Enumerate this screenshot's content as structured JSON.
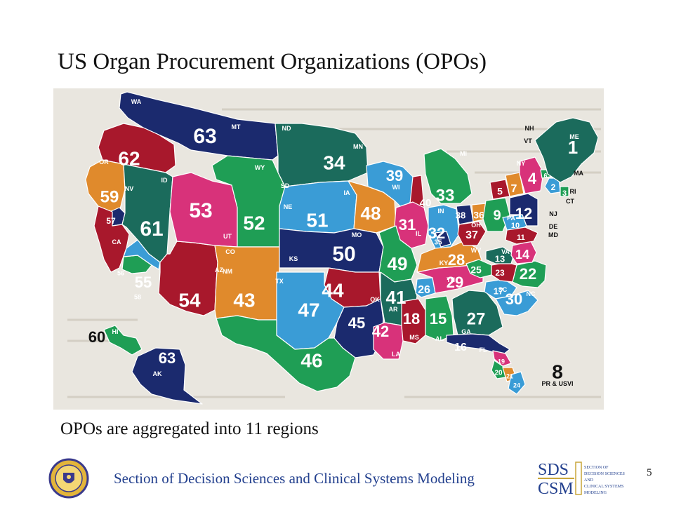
{
  "slide": {
    "title": "US Organ Procurement Organizations (OPOs)",
    "subtitle": "OPOs are aggregated into 11 regions",
    "footer": "Section of Decision Sciences and Clinical Systems Modeling",
    "page_number": "5"
  },
  "map": {
    "regions": [
      {
        "id": "1",
        "label": "1",
        "color": "#1b6b5c"
      },
      {
        "id": "2",
        "label": "2",
        "color": "#3a9cd6"
      },
      {
        "id": "3",
        "label": "3",
        "color": "#1f9e55"
      },
      {
        "id": "4",
        "label": "4",
        "color": "#d8327a"
      },
      {
        "id": "5",
        "label": "5",
        "color": "#a8182c"
      },
      {
        "id": "6",
        "label": "6",
        "color": "#1f9e55"
      },
      {
        "id": "7",
        "label": "7",
        "color": "#e08a2c"
      },
      {
        "id": "8",
        "label": "8",
        "color": "#1b2a6e"
      },
      {
        "id": "9",
        "label": "9",
        "color": "#1f9e55"
      },
      {
        "id": "10",
        "label": "10",
        "color": "#3a9cd6"
      },
      {
        "id": "11",
        "label": "11",
        "color": "#a8182c"
      },
      {
        "id": "12",
        "label": "12",
        "color": "#1b2a6e"
      },
      {
        "id": "13",
        "label": "13",
        "color": "#1b6b5c"
      },
      {
        "id": "14",
        "label": "14",
        "color": "#d8327a"
      },
      {
        "id": "15",
        "label": "15",
        "color": "#1f9e55"
      },
      {
        "id": "16",
        "label": "16",
        "color": "#1b2a6e"
      },
      {
        "id": "17",
        "label": "17",
        "color": "#3a9cd6"
      },
      {
        "id": "18",
        "label": "18",
        "color": "#a8182c"
      },
      {
        "id": "19",
        "label": "19",
        "color": "#d8327a"
      },
      {
        "id": "20",
        "label": "20",
        "color": "#1f9e55"
      },
      {
        "id": "21",
        "label": "21",
        "color": "#e08a2c"
      },
      {
        "id": "22",
        "label": "22",
        "color": "#1f9e55"
      },
      {
        "id": "23",
        "label": "23",
        "color": "#a8182c"
      },
      {
        "id": "24",
        "label": "24",
        "color": "#3a9cd6"
      },
      {
        "id": "25",
        "label": "25",
        "color": "#1f9e55"
      },
      {
        "id": "26",
        "label": "26",
        "color": "#3a9cd6"
      },
      {
        "id": "27",
        "label": "27",
        "color": "#1b6b5c"
      },
      {
        "id": "28",
        "label": "28",
        "color": "#e08a2c"
      },
      {
        "id": "29",
        "label": "29",
        "color": "#d8327a"
      },
      {
        "id": "30",
        "label": "30",
        "color": "#3a9cd6"
      },
      {
        "id": "31",
        "label": "31",
        "color": "#d8327a"
      },
      {
        "id": "32",
        "label": "32",
        "color": "#3a9cd6"
      },
      {
        "id": "33",
        "label": "33",
        "color": "#1f9e55"
      },
      {
        "id": "34",
        "label": "34",
        "color": "#1b6b5c"
      },
      {
        "id": "35",
        "label": "35",
        "color": "#1b2a6e"
      },
      {
        "id": "36",
        "label": "36",
        "color": "#e08a2c"
      },
      {
        "id": "37",
        "label": "37",
        "color": "#a8182c"
      },
      {
        "id": "38",
        "label": "38",
        "color": "#1b2a6e"
      },
      {
        "id": "39",
        "label": "39",
        "color": "#3a9cd6"
      },
      {
        "id": "40",
        "label": "40",
        "color": "#a8182c"
      },
      {
        "id": "41",
        "label": "41",
        "color": "#1b6b5c"
      },
      {
        "id": "42",
        "label": "42",
        "color": "#d8327a"
      },
      {
        "id": "43",
        "label": "43",
        "color": "#e08a2c"
      },
      {
        "id": "44",
        "label": "44",
        "color": "#a8182c"
      },
      {
        "id": "45",
        "label": "45",
        "color": "#1b2a6e"
      },
      {
        "id": "46",
        "label": "46",
        "color": "#1f9e55"
      },
      {
        "id": "47",
        "label": "47",
        "color": "#3a9cd6"
      },
      {
        "id": "48",
        "label": "48",
        "color": "#e08a2c"
      },
      {
        "id": "49",
        "label": "49",
        "color": "#1f9e55"
      },
      {
        "id": "50",
        "label": "50",
        "color": "#1b2a6e"
      },
      {
        "id": "51",
        "label": "51",
        "color": "#3a9cd6"
      },
      {
        "id": "52",
        "label": "52",
        "color": "#1f9e55"
      },
      {
        "id": "53",
        "label": "53",
        "color": "#d8327a"
      },
      {
        "id": "54",
        "label": "54",
        "color": "#a8182c"
      },
      {
        "id": "55",
        "label": "55",
        "color": "#3a9cd6"
      },
      {
        "id": "56",
        "label": "56",
        "color": "#a8182c"
      },
      {
        "id": "57",
        "label": "57",
        "color": "#1b2a6e"
      },
      {
        "id": "58",
        "label": "58",
        "color": "#1f9e55"
      },
      {
        "id": "59",
        "label": "59",
        "color": "#e08a2c"
      },
      {
        "id": "60",
        "label": "60",
        "color": "#1f9e55"
      },
      {
        "id": "61",
        "label": "61",
        "color": "#1b6b5c"
      },
      {
        "id": "62",
        "label": "62",
        "color": "#a8182c"
      },
      {
        "id": "63",
        "label": "63",
        "color": "#1b2a6e"
      }
    ],
    "state_labels": [
      "WA",
      "MT",
      "ND",
      "MN",
      "OR",
      "ID",
      "WY",
      "SD",
      "NV",
      "NE",
      "IA",
      "WI",
      "MI",
      "CA",
      "UT",
      "CO",
      "KS",
      "MO",
      "IL",
      "IN",
      "OH",
      "PA",
      "NY",
      "VT",
      "NH",
      "ME",
      "MA",
      "RI",
      "CT",
      "NJ",
      "DE",
      "MD",
      "AZ",
      "NM",
      "TX",
      "OK",
      "AR",
      "KY",
      "TN",
      "WV",
      "VA",
      "NC",
      "SC",
      "GA",
      "AL",
      "MS",
      "LA",
      "FL",
      "AK",
      "HI",
      "PR & USVI"
    ],
    "colors": {
      "background_scan": "#e9e6df",
      "outline": "#ffffff",
      "label": "#ffffff"
    }
  },
  "logos": {
    "seal_icon": "university-seal-icon",
    "sds_logo": {
      "line1": "SDS",
      "line2": "CSM",
      "words": [
        "SECTION OF",
        "DECISION SCIENCES",
        "AND",
        "CLINICAL SYSTEMS",
        "MODELING"
      ]
    }
  }
}
